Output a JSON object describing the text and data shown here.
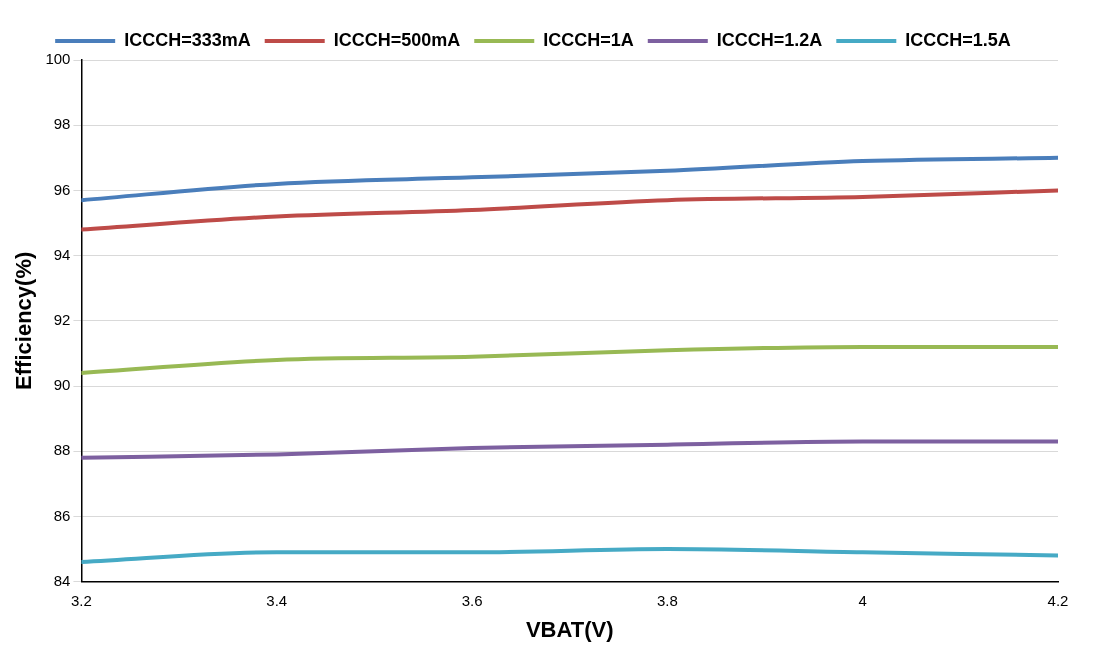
{
  "chart_data": {
    "type": "line",
    "xlabel": "VBAT(V)",
    "ylabel": "Efficiency(%)",
    "x": [
      3.2,
      3.4,
      3.6,
      3.8,
      4.0,
      4.2
    ],
    "series": [
      {
        "name": "ICCCH=333mA",
        "color": "#4a7ebb",
        "values": [
          95.7,
          96.2,
          96.4,
          96.6,
          96.9,
          97.0
        ]
      },
      {
        "name": "ICCCH=500mA",
        "color": "#be4b48",
        "values": [
          94.8,
          95.2,
          95.4,
          95.7,
          95.8,
          96.0
        ]
      },
      {
        "name": "ICCCH=1A",
        "color": "#98b954",
        "values": [
          90.4,
          90.8,
          90.9,
          91.1,
          91.2,
          91.2
        ]
      },
      {
        "name": "ICCCH=1.2A",
        "color": "#7d60a0",
        "values": [
          87.8,
          87.9,
          88.1,
          88.2,
          88.3,
          88.3
        ]
      },
      {
        "name": "ICCCH=1.5A",
        "color": "#46aac5",
        "values": [
          84.6,
          84.9,
          84.9,
          85.0,
          84.9,
          84.8
        ]
      }
    ],
    "xlim": [
      3.2,
      4.2
    ],
    "xticks": [
      3.2,
      3.4,
      3.6,
      3.8,
      4,
      4.2
    ],
    "ylim": [
      84,
      100
    ],
    "yticks": [
      84,
      86,
      88,
      90,
      92,
      94,
      96,
      98,
      100
    ],
    "grid": "y",
    "legend": "top",
    "marker": "none",
    "line_style": "solid"
  }
}
